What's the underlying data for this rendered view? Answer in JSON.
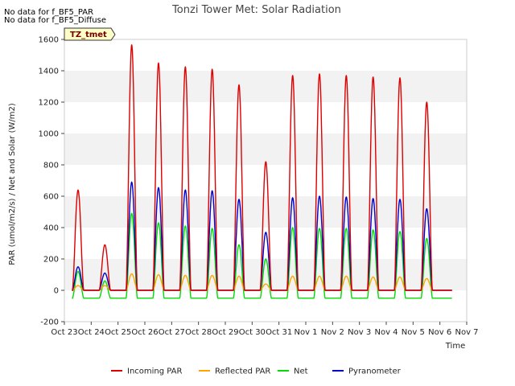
{
  "chart_data": {
    "type": "line",
    "title": "Tonzi Tower Met: Solar Radiation",
    "xlabel": "Time",
    "ylabel": "PAR (umol/m2/s) / Net and Solar (W/m2)",
    "ylim": [
      -200,
      1600
    ],
    "yticks": [
      -200,
      0,
      200,
      400,
      600,
      800,
      1000,
      1200,
      1400,
      1600
    ],
    "xlim": [
      0,
      15
    ],
    "xticks": [
      0,
      1,
      2,
      3,
      4,
      5,
      6,
      7,
      8,
      9,
      10,
      11,
      12,
      13,
      14,
      15
    ],
    "xticklabels": [
      "Oct 23",
      "Oct 24",
      "Oct 25",
      "Oct 26",
      "Oct 27",
      "Oct 28",
      "Oct 29",
      "Oct 30",
      "Oct 31",
      "Nov 1",
      "Nov 2",
      "Nov 3",
      "Nov 4",
      "Nov 5",
      "Nov 6",
      "Nov 7"
    ],
    "grid": "horizontal bands",
    "legend_position": "bottom",
    "notes": [
      "No data for f_BF5_PAR",
      "No data for f_BF5_Diffuse"
    ],
    "badge": "TZ_tmet",
    "day_start": 0.3,
    "day_end": 0.72,
    "series": [
      {
        "name": "Incoming PAR",
        "color": "#dd0000",
        "daily_peaks": [
          640,
          290,
          1565,
          1450,
          1425,
          1410,
          1310,
          820,
          1370,
          1380,
          1370,
          1360,
          1355,
          1200
        ]
      },
      {
        "name": "Reflected PAR",
        "color": "#ffa500",
        "daily_peaks": [
          30,
          30,
          105,
          100,
          95,
          95,
          90,
          40,
          90,
          90,
          90,
          85,
          85,
          75
        ]
      },
      {
        "name": "Net",
        "color": "#00dd00",
        "night_value": -50,
        "daily_peaks": [
          120,
          60,
          490,
          430,
          410,
          395,
          290,
          200,
          400,
          395,
          395,
          385,
          375,
          330
        ]
      },
      {
        "name": "Pyranometer",
        "color": "#0000cc",
        "daily_peaks": [
          150,
          110,
          690,
          655,
          640,
          635,
          580,
          370,
          590,
          600,
          595,
          585,
          580,
          520
        ]
      }
    ]
  }
}
